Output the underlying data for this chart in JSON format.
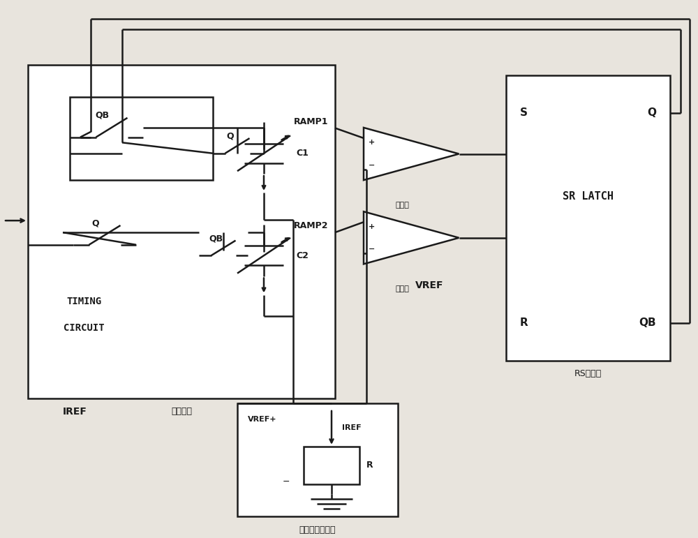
{
  "bg": "#e8e4dd",
  "lc": "#1a1a1a",
  "lw": 1.8,
  "fw": 10.0,
  "fh": 7.71,
  "labels": {
    "QB1": "QB",
    "Q1": "Q",
    "QB2": "QB",
    "C1": "C1",
    "C2": "C2",
    "RAMP1": "RAMP1",
    "RAMP2": "RAMP2",
    "TC1": "TIMING",
    "TC2": "CIRCUIT",
    "jishi": "计时电路",
    "IREF": "IREF",
    "VREF": "VREF",
    "S": "S",
    "Q_out": "Q",
    "SR_LATCH": "SR LATCH",
    "R_sr": "R",
    "QB_out": "QB",
    "RS": "RS锁存器",
    "bj1": "比较器",
    "bj2": "比较器",
    "VREF_plus": "VREF+",
    "IREF_ref": "IREF",
    "R_ref": "R",
    "dianya": "电压和电流基准"
  }
}
